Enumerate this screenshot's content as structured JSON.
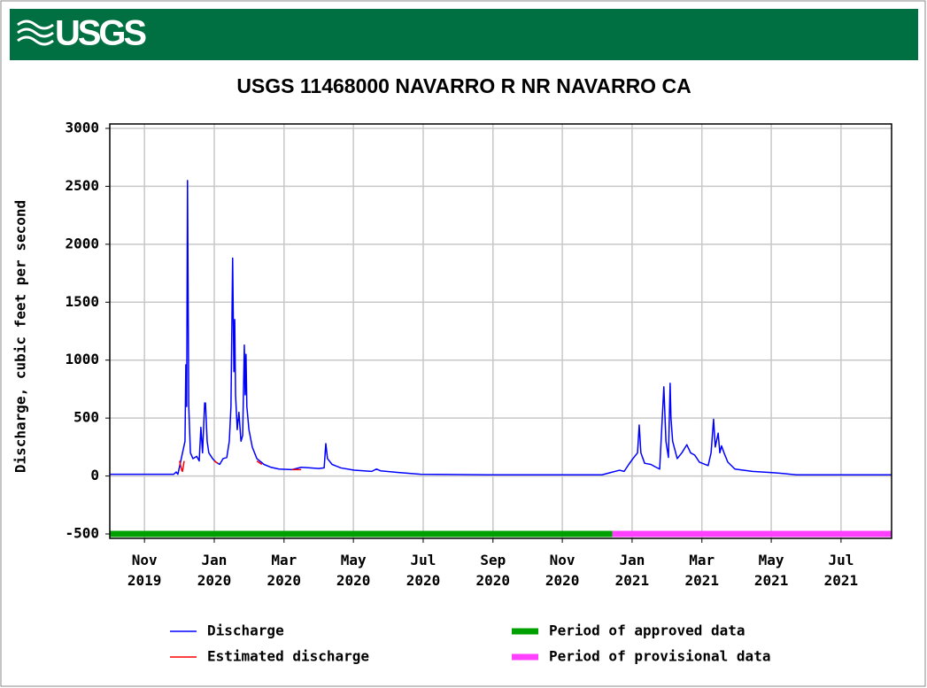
{
  "header": {
    "logo": "USGS"
  },
  "chart_data": {
    "type": "line",
    "title": "USGS 11468000 NAVARRO R NR NAVARRO CA",
    "y_label": "Discharge, cubic feet per second",
    "xlim": [
      2019.75,
      2021.621
    ],
    "ylim": [
      -538,
      3038
    ],
    "yticks": [
      -500,
      0,
      500,
      1000,
      1500,
      2000,
      2500,
      3000
    ],
    "xticks": [
      {
        "value": 2019.833,
        "label": "Nov 2019"
      },
      {
        "value": 2020.0,
        "label": "Jan 2020"
      },
      {
        "value": 2020.167,
        "label": "Mar 2020"
      },
      {
        "value": 2020.333,
        "label": "May 2020"
      },
      {
        "value": 2020.5,
        "label": "Jul 2020"
      },
      {
        "value": 2020.667,
        "label": "Sep 2020"
      },
      {
        "value": 2020.833,
        "label": "Nov 2020"
      },
      {
        "value": 2021.0,
        "label": "Jan 2021"
      },
      {
        "value": 2021.167,
        "label": "Mar 2021"
      },
      {
        "value": 2021.333,
        "label": "May 2021"
      },
      {
        "value": 2021.5,
        "label": "Jul 2021"
      }
    ],
    "grid": true,
    "series": [
      {
        "name": "Discharge",
        "color": "#0000ff",
        "line_width": 1.5,
        "x": [
          2019.75,
          2019.903,
          2019.909,
          2019.913,
          2019.93,
          2019.932,
          2019.934,
          2019.936,
          2019.939,
          2019.943,
          2019.949,
          2019.958,
          2019.964,
          2019.968,
          2019.972,
          2019.977,
          2019.979,
          2019.983,
          2019.987,
          2019.996,
          2020.004,
          2020.013,
          2020.021,
          2020.03,
          2020.036,
          2020.04,
          2020.044,
          2020.047,
          2020.049,
          2020.051,
          2020.055,
          2020.059,
          2020.064,
          2020.068,
          2020.072,
          2020.074,
          2020.076,
          2020.078,
          2020.083,
          2020.091,
          2020.102,
          2020.119,
          2020.136,
          2020.155,
          2020.186,
          2020.208,
          2020.229,
          2020.25,
          2020.263,
          2020.267,
          2020.271,
          2020.282,
          2020.303,
          2020.335,
          2020.377,
          2020.388,
          2020.398,
          2020.441,
          2020.494,
          2020.653,
          2020.928,
          2020.949,
          2020.97,
          2020.981,
          2020.992,
          2021.002,
          2021.013,
          2021.017,
          2021.021,
          2021.03,
          2021.045,
          2021.055,
          2021.066,
          2021.076,
          2021.081,
          2021.087,
          2021.091,
          2021.093,
          2021.097,
          2021.108,
          2021.119,
          2021.131,
          2021.14,
          2021.15,
          2021.161,
          2021.182,
          2021.189,
          2021.195,
          2021.199,
          2021.206,
          2021.21,
          2021.214,
          2021.22,
          2021.229,
          2021.246,
          2021.288,
          2021.331,
          2021.352,
          2021.394,
          2021.621
        ],
        "values": [
          15,
          15,
          35,
          15,
          300,
          960,
          600,
          2550,
          600,
          200,
          150,
          170,
          130,
          420,
          200,
          630,
          630,
          300,
          200,
          150,
          120,
          100,
          150,
          160,
          300,
          600,
          1880,
          900,
          1350,
          700,
          400,
          550,
          300,
          350,
          1130,
          700,
          1050,
          600,
          400,
          250,
          150,
          100,
          75,
          60,
          55,
          75,
          70,
          65,
          70,
          280,
          150,
          100,
          70,
          50,
          40,
          60,
          45,
          30,
          15,
          10,
          10,
          30,
          50,
          40,
          100,
          150,
          200,
          440,
          200,
          110,
          100,
          80,
          60,
          770,
          300,
          160,
          800,
          500,
          300,
          150,
          200,
          270,
          200,
          180,
          120,
          90,
          200,
          490,
          250,
          370,
          200,
          260,
          200,
          120,
          60,
          40,
          30,
          25,
          10,
          10
        ]
      },
      {
        "name": "Estimated discharge",
        "color": "#ff0000",
        "line_width": 1.5,
        "x": [
          2019.917,
          2019.922,
          2019.924,
          2019.928,
          null,
          2020.0,
          2020.008,
          null,
          2020.102,
          2020.114,
          null,
          2020.186,
          2020.208
        ],
        "values": [
          130,
          50,
          40,
          130,
          null,
          130,
          110,
          null,
          130,
          100,
          null,
          55,
          55
        ]
      },
      {
        "name": "Period of approved data",
        "color": "#00a000",
        "line_width": 7,
        "x": [
          2019.75,
          2020.953
        ],
        "values": [
          -500,
          -500
        ]
      },
      {
        "name": "Period of provisional data",
        "color": "#ff40ff",
        "line_width": 7,
        "x": [
          2020.953,
          2021.621
        ],
        "values": [
          -500,
          -500
        ]
      }
    ]
  }
}
